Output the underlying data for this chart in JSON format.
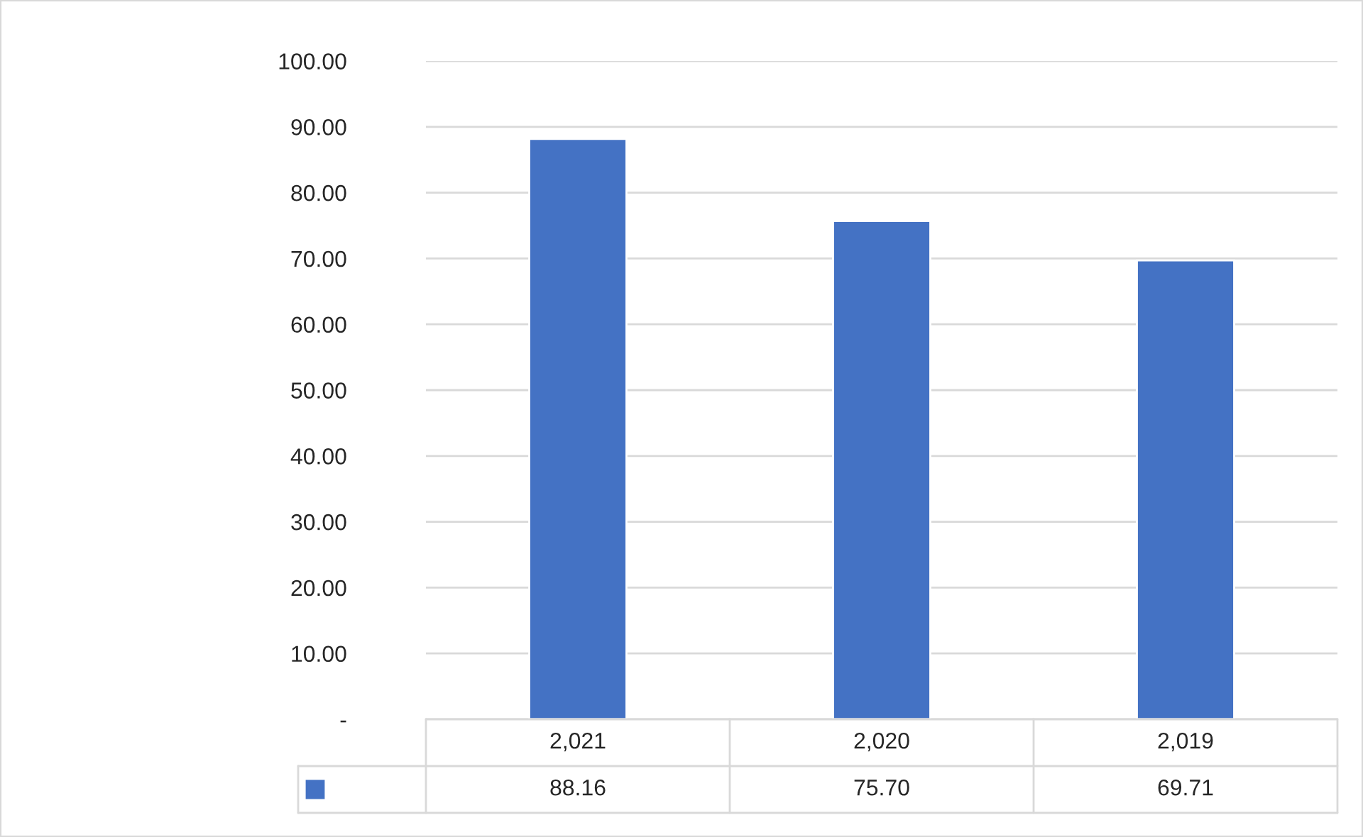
{
  "chart_data": {
    "type": "bar",
    "categories": [
      "2,021",
      "2,020",
      "2,019"
    ],
    "series": [
      {
        "color": "#4472c4",
        "values": [
          88.16,
          75.7,
          69.71
        ]
      }
    ],
    "value_labels": [
      "88.16",
      "75.70",
      "69.71"
    ],
    "ylim": [
      0,
      100
    ],
    "yticks": [
      {
        "value": 0,
        "label": "-"
      },
      {
        "value": 10,
        "label": "10.00"
      },
      {
        "value": 20,
        "label": "20.00"
      },
      {
        "value": 30,
        "label": "30.00"
      },
      {
        "value": 40,
        "label": "40.00"
      },
      {
        "value": 50,
        "label": "50.00"
      },
      {
        "value": 60,
        "label": "60.00"
      },
      {
        "value": 70,
        "label": "70.00"
      },
      {
        "value": 80,
        "label": "80.00"
      },
      {
        "value": 90,
        "label": "90.00"
      },
      {
        "value": 100,
        "label": "100.00"
      }
    ],
    "grid": "y"
  }
}
